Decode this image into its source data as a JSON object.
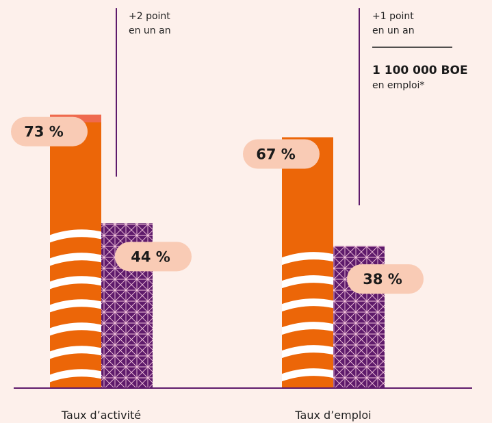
{
  "chart_data": {
    "type": "bar",
    "categories": [
      "Taux d’activité",
      "Taux d’emploi"
    ],
    "series": [
      {
        "values": [
          73,
          67
        ]
      },
      {
        "values": [
          44,
          38
        ]
      }
    ],
    "value_labels": [
      [
        "73 %",
        "44 %"
      ],
      [
        "67 %",
        "38 %"
      ]
    ],
    "ylim": [
      0,
      100
    ],
    "grid": false,
    "legend": "none",
    "increase_segment": {
      "category_index": 0,
      "value_from": 71,
      "value_to": 73
    },
    "annotations": [
      {
        "category_index": 0,
        "lines": [
          "+2 point",
          "en un an"
        ]
      },
      {
        "category_index": 1,
        "lines": [
          "+1 point",
          "en un an"
        ]
      }
    ],
    "callout": {
      "value": "1 100 000 BOE",
      "text": "en emploi*"
    }
  },
  "colors": {
    "background": "#fdf0eb",
    "orange": "#ec6608",
    "increase": "#ef6a4f",
    "purple": "#5e1a6b",
    "pattern": "#f5c6dd",
    "pill": "#f9cbb5",
    "line": "#5e1a6b"
  }
}
